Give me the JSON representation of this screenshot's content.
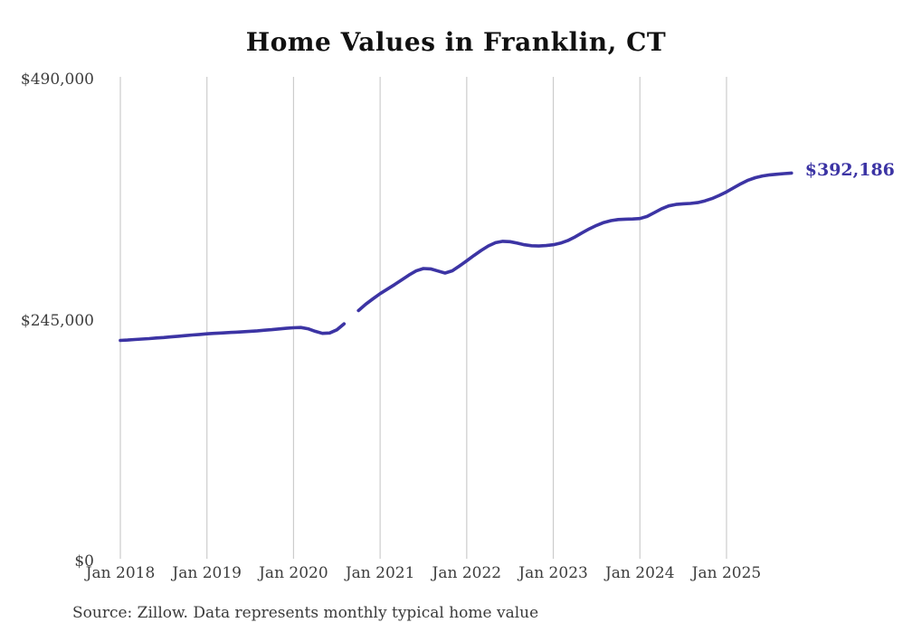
{
  "page": {
    "title": "Home Values in Franklin, CT",
    "source_note": "Source: Zillow. Data represents monthly typical home value"
  },
  "colors": {
    "background": "#ffffff",
    "line": "#3c34a4",
    "grid": "#cccccc",
    "title": "#111111",
    "axis_label": "#3d3d3d",
    "end_label": "#3c34a4",
    "source": "#3a3a3a"
  },
  "chart_data": {
    "type": "line",
    "title": "Home Values in Franklin, CT",
    "xlabel": "",
    "ylabel": "",
    "ylim": [
      0,
      490000
    ],
    "y_ticks": [
      0,
      245000,
      490000
    ],
    "y_tick_labels": [
      "$0",
      "$245,000",
      "$490,000"
    ],
    "x_tick_labels": [
      "Jan 2018",
      "Jan 2019",
      "Jan 2020",
      "Jan 2021",
      "Jan 2022",
      "Jan 2023",
      "Jan 2024",
      "Jan 2025"
    ],
    "grid": "vertical-only",
    "legend": "none",
    "end_label": "$392,186",
    "last_value": 392186,
    "gap_months": [
      "2020-09"
    ],
    "source": "Source: Zillow. Data represents monthly typical home value",
    "series": [
      {
        "name": "Monthly typical home value",
        "x": [
          "2018-01",
          "2018-02",
          "2018-03",
          "2018-04",
          "2018-05",
          "2018-06",
          "2018-07",
          "2018-08",
          "2018-09",
          "2018-10",
          "2018-11",
          "2018-12",
          "2019-01",
          "2019-02",
          "2019-03",
          "2019-04",
          "2019-05",
          "2019-06",
          "2019-07",
          "2019-08",
          "2019-09",
          "2019-10",
          "2019-11",
          "2019-12",
          "2020-01",
          "2020-02",
          "2020-03",
          "2020-04",
          "2020-05",
          "2020-06",
          "2020-07",
          "2020-08",
          "2020-09",
          "2020-10",
          "2020-11",
          "2020-12",
          "2021-01",
          "2021-02",
          "2021-03",
          "2021-04",
          "2021-05",
          "2021-06",
          "2021-07",
          "2021-08",
          "2021-09",
          "2021-10",
          "2021-11",
          "2021-12",
          "2022-01",
          "2022-02",
          "2022-03",
          "2022-04",
          "2022-05",
          "2022-06",
          "2022-07",
          "2022-08",
          "2022-09",
          "2022-10",
          "2022-11",
          "2022-12",
          "2023-01",
          "2023-02",
          "2023-03",
          "2023-04",
          "2023-05",
          "2023-06",
          "2023-07",
          "2023-08",
          "2023-09",
          "2023-10",
          "2023-11",
          "2023-12",
          "2024-01",
          "2024-02",
          "2024-03",
          "2024-04",
          "2024-05",
          "2024-06",
          "2024-07",
          "2024-08",
          "2024-09",
          "2024-10",
          "2024-11",
          "2024-12",
          "2025-01",
          "2025-02",
          "2025-03",
          "2025-04",
          "2025-05",
          "2025-06",
          "2025-07",
          "2025-08",
          "2025-09",
          "2025-10"
        ],
        "values": [
          222000,
          222400,
          222900,
          223400,
          223900,
          224500,
          225000,
          225600,
          226200,
          226900,
          227500,
          228100,
          228700,
          229200,
          229600,
          230000,
          230400,
          230800,
          231300,
          231800,
          232400,
          233000,
          233700,
          234300,
          234900,
          235200,
          233900,
          231300,
          229200,
          229600,
          232800,
          238800,
          null,
          252400,
          258800,
          264300,
          269500,
          274100,
          278700,
          283600,
          288500,
          292700,
          295100,
          294700,
          292600,
          290500,
          292800,
          297800,
          302900,
          308300,
          313500,
          318100,
          321400,
          322800,
          322400,
          320900,
          319300,
          318300,
          318000,
          318500,
          319300,
          320900,
          323500,
          327200,
          331500,
          335500,
          339000,
          341900,
          343800,
          344900,
          345300,
          345500,
          345900,
          348100,
          351900,
          355900,
          358800,
          360300,
          360900,
          361300,
          362100,
          363900,
          366300,
          369500,
          373100,
          377200,
          381300,
          384900,
          387500,
          389200,
          390300,
          391000,
          391600,
          392186
        ]
      }
    ]
  }
}
